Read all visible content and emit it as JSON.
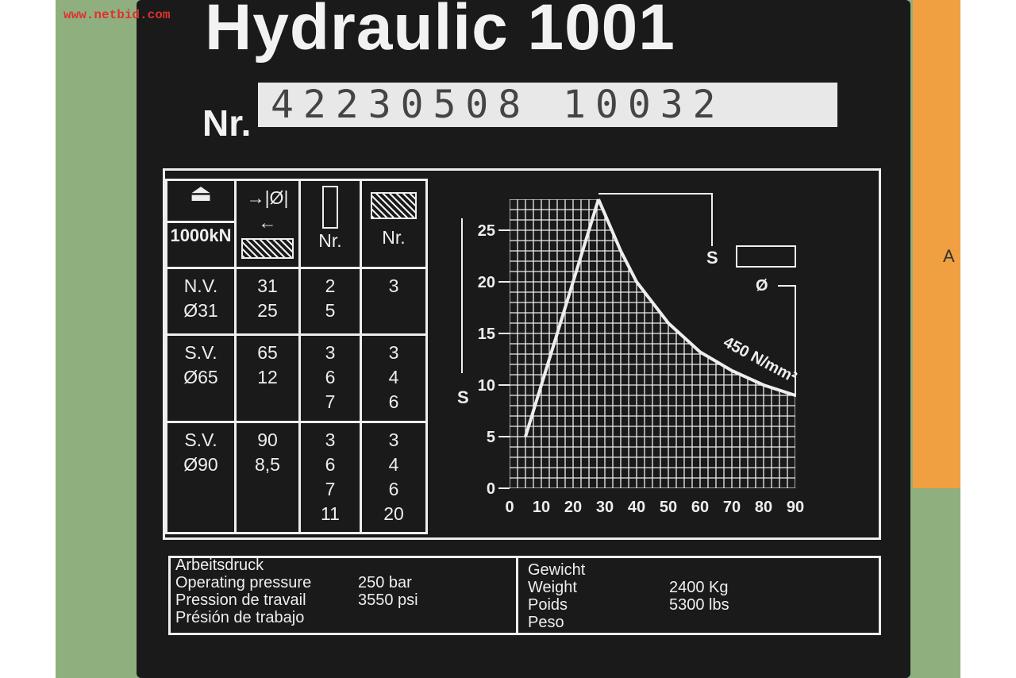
{
  "watermark": "www.netbid.com",
  "title": "Hydraulic 1001",
  "serial": {
    "label": "Nr.",
    "value": "42230508 10032"
  },
  "table": {
    "headers": [
      "1000kN",
      "Ø",
      "Nr.",
      "Nr."
    ],
    "rows": [
      {
        "name": "N.V.\nØ31",
        "dia": "31\n25",
        "punch": "2\n5",
        "die": "3"
      },
      {
        "name": "S.V.\nØ65",
        "dia": "65\n12",
        "punch": "3\n6\n7",
        "die": "3\n4\n6"
      },
      {
        "name": "S.V.\nØ90",
        "dia": "90\n8,5",
        "punch": "3\n6\n7\n11",
        "die": "3\n4\n6\n20"
      }
    ]
  },
  "chart_data": {
    "type": "area",
    "ylabel": "S",
    "xlim": [
      0,
      90
    ],
    "ylim": [
      0,
      25
    ],
    "xticks": [
      0,
      10,
      20,
      30,
      40,
      50,
      60,
      70,
      80,
      90
    ],
    "yticks": [
      0,
      5,
      10,
      15,
      20,
      25
    ],
    "grid": true,
    "annotation": "450 N/mm²",
    "dimension_labels": [
      "S",
      "Ø"
    ],
    "lower_line": [
      [
        5,
        5
      ],
      [
        28,
        28
      ]
    ],
    "curve": [
      [
        28,
        28
      ],
      [
        35,
        23
      ],
      [
        40,
        20
      ],
      [
        50,
        16
      ],
      [
        60,
        13.2
      ],
      [
        70,
        11.4
      ],
      [
        80,
        10
      ],
      [
        90,
        9
      ]
    ]
  },
  "specs": {
    "pressure_labels": [
      "Arbeitsdruck",
      "Operating pressure",
      "Pression de travail",
      "Présión de trabajo"
    ],
    "pressure_values": [
      "250 bar",
      "3550 psi"
    ],
    "weight_labels": [
      "Gewicht",
      "Weight",
      "Poids",
      "Peso"
    ],
    "weight_values": [
      "2400 Kg",
      "5300 lbs"
    ]
  },
  "side_letter": "A",
  "colors": {
    "plate": "#1a1a1a",
    "print": "#eeeeee",
    "background": "#8fb07e",
    "orange": "#f0a040"
  }
}
